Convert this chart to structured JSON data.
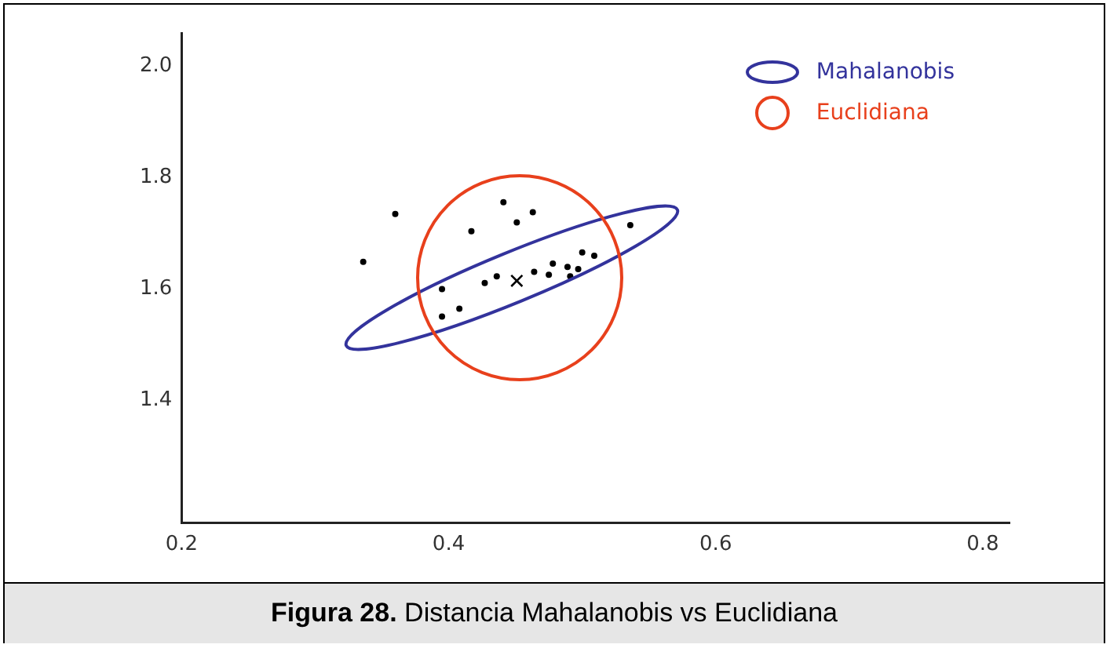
{
  "chart_data": {
    "type": "scatter",
    "annotations": [
      "Mahalanobis",
      "Euclidiana",
      "Figura 28. Distancia Mahalanobis vs Euclidiana"
    ],
    "xlim": [
      0.2,
      0.82
    ],
    "xticks": [
      0.2,
      0.4,
      0.6,
      0.8
    ],
    "ylim": [
      1.18,
      2.06
    ],
    "yticks": [
      1.4,
      1.6,
      1.8,
      {
        "value": 2,
        "label": "2.0"
      }
    ],
    "grid": false,
    "marker": "circle",
    "series": [
      {
        "color": "#000000",
        "x": [
          0.336,
          0.36,
          0.395,
          0.395,
          0.408,
          0.417,
          0.427,
          0.436,
          0.441,
          0.451,
          0.463,
          0.464,
          0.475,
          0.478,
          0.489,
          0.491,
          0.497,
          0.5,
          0.509,
          0.536
        ],
        "values": [
          1.649,
          1.735,
          1.6,
          1.551,
          1.565,
          1.704,
          1.611,
          1.623,
          1.756,
          1.72,
          1.738,
          1.631,
          1.626,
          1.646,
          1.64,
          1.623,
          1.636,
          1.666,
          1.66,
          1.715
        ]
      },
      {
        "marker": "cross",
        "color": "#000000",
        "x": [
          0.451
        ],
        "values": [
          1.615
        ]
      }
    ]
  }
}
